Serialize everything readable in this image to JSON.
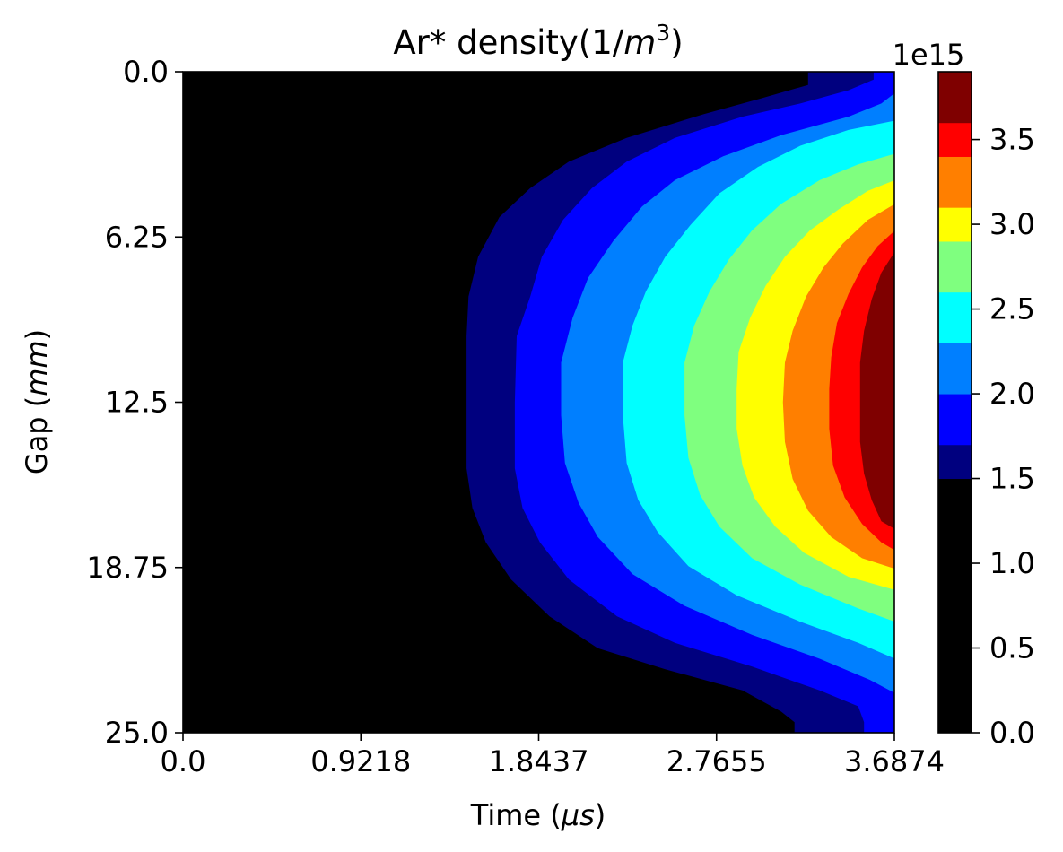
{
  "chart_data": {
    "type": "heatmap",
    "title": "Ar* density(1/m³)",
    "title_parts": {
      "main": "Ar* density(1/",
      "var": "m",
      "exp": "3",
      "close": ")"
    },
    "xlabel": "Time (μs)",
    "xlabel_parts": {
      "main": "Time (",
      "var": "μs",
      "close": ")"
    },
    "ylabel": "Gap (mm)",
    "ylabel_parts": {
      "main": "Gap (",
      "var": "mm",
      "close": ")"
    },
    "xlim": [
      0.0,
      3.6874
    ],
    "ylim": [
      25.0,
      0.0
    ],
    "x_ticks": [
      0.0,
      0.9218,
      1.8437,
      2.7655,
      3.6874
    ],
    "x_tick_labels": [
      "0.0",
      "0.9218",
      "1.8437",
      "2.7655",
      "3.6874"
    ],
    "y_ticks": [
      0.0,
      6.25,
      12.5,
      18.75,
      25.0
    ],
    "y_tick_labels": [
      "0.0",
      "6.25",
      "12.5",
      "18.75",
      "25.0"
    ],
    "colorbar": {
      "offset_label": "1e15",
      "ticks": [
        0.0,
        0.5,
        1.0,
        1.5,
        2.0,
        2.5,
        3.0,
        3.5
      ],
      "tick_labels": [
        "0.0",
        "0.5",
        "1.0",
        "1.5",
        "2.0",
        "2.5",
        "3.0",
        "3.5"
      ],
      "vmax": 3.9,
      "bands": [
        {
          "from": 0.0,
          "to": 1.5,
          "color": "#000000"
        },
        {
          "from": 1.5,
          "to": 1.7,
          "color": "#00007f"
        },
        {
          "from": 1.7,
          "to": 2.0,
          "color": "#0000ff"
        },
        {
          "from": 2.0,
          "to": 2.3,
          "color": "#007fff"
        },
        {
          "from": 2.3,
          "to": 2.6,
          "color": "#00ffff"
        },
        {
          "from": 2.6,
          "to": 2.9,
          "color": "#7fff7f"
        },
        {
          "from": 2.9,
          "to": 3.1,
          "color": "#ffff00"
        },
        {
          "from": 3.1,
          "to": 3.4,
          "color": "#ff7f00"
        },
        {
          "from": 3.4,
          "to": 3.6,
          "color": "#ff0000"
        },
        {
          "from": 3.6,
          "to": 3.9,
          "color": "#7f0000"
        }
      ]
    },
    "contours": [
      {
        "color": "#00007f",
        "boundary": [
          [
            3.24,
            0.0
          ],
          [
            3.24,
            0.5
          ],
          [
            3.0,
            1.0
          ],
          [
            2.7,
            1.6
          ],
          [
            2.3,
            2.5
          ],
          [
            2.0,
            3.4
          ],
          [
            1.8,
            4.4
          ],
          [
            1.64,
            5.5
          ],
          [
            1.53,
            7.0
          ],
          [
            1.48,
            8.5
          ],
          [
            1.47,
            10.0
          ],
          [
            1.47,
            12.5
          ],
          [
            1.47,
            15.0
          ],
          [
            1.5,
            16.5
          ],
          [
            1.57,
            17.8
          ],
          [
            1.7,
            19.2
          ],
          [
            1.9,
            20.6
          ],
          [
            2.15,
            21.8
          ],
          [
            2.5,
            22.6
          ],
          [
            2.9,
            23.4
          ],
          [
            3.1,
            24.2
          ],
          [
            3.17,
            24.6
          ],
          [
            3.17,
            25.0
          ]
        ]
      },
      {
        "color": "#0000ff",
        "boundary": [
          [
            3.58,
            0.0
          ],
          [
            3.58,
            0.3
          ],
          [
            3.45,
            0.7
          ],
          [
            3.2,
            1.2
          ],
          [
            2.9,
            1.7
          ],
          [
            2.55,
            2.5
          ],
          [
            2.3,
            3.4
          ],
          [
            2.12,
            4.4
          ],
          [
            1.97,
            5.6
          ],
          [
            1.86,
            7.0
          ],
          [
            1.8,
            8.5
          ],
          [
            1.73,
            10.0
          ],
          [
            1.72,
            12.5
          ],
          [
            1.72,
            15.0
          ],
          [
            1.76,
            16.5
          ],
          [
            1.85,
            17.8
          ],
          [
            2.0,
            19.2
          ],
          [
            2.25,
            20.6
          ],
          [
            2.55,
            21.6
          ],
          [
            2.95,
            22.5
          ],
          [
            3.3,
            23.4
          ],
          [
            3.5,
            24.0
          ],
          [
            3.53,
            24.6
          ],
          [
            3.53,
            25.0
          ]
        ]
      },
      {
        "color": "#007fff",
        "boundary": [
          [
            3.69,
            0.8
          ],
          [
            3.62,
            1.2
          ],
          [
            3.45,
            1.7
          ],
          [
            3.1,
            2.4
          ],
          [
            2.8,
            3.2
          ],
          [
            2.55,
            4.1
          ],
          [
            2.38,
            5.1
          ],
          [
            2.23,
            6.4
          ],
          [
            2.1,
            7.8
          ],
          [
            2.02,
            9.3
          ],
          [
            1.96,
            11.0
          ],
          [
            1.96,
            13.0
          ],
          [
            1.98,
            14.8
          ],
          [
            2.05,
            16.3
          ],
          [
            2.15,
            17.6
          ],
          [
            2.33,
            19.0
          ],
          [
            2.6,
            20.2
          ],
          [
            2.95,
            21.3
          ],
          [
            3.3,
            22.2
          ],
          [
            3.56,
            23.0
          ],
          [
            3.69,
            23.5
          ]
        ]
      },
      {
        "color": "#00ffff",
        "boundary": [
          [
            3.69,
            1.85
          ],
          [
            3.45,
            2.2
          ],
          [
            3.2,
            2.8
          ],
          [
            2.98,
            3.6
          ],
          [
            2.78,
            4.6
          ],
          [
            2.63,
            5.8
          ],
          [
            2.5,
            7.0
          ],
          [
            2.4,
            8.3
          ],
          [
            2.33,
            9.6
          ],
          [
            2.28,
            11.0
          ],
          [
            2.28,
            13.0
          ],
          [
            2.3,
            14.8
          ],
          [
            2.36,
            16.2
          ],
          [
            2.46,
            17.4
          ],
          [
            2.62,
            18.7
          ],
          [
            2.87,
            19.8
          ],
          [
            3.2,
            20.8
          ],
          [
            3.5,
            21.6
          ],
          [
            3.69,
            22.2
          ]
        ]
      },
      {
        "color": "#7fff7f",
        "boundary": [
          [
            3.69,
            3.1
          ],
          [
            3.5,
            3.5
          ],
          [
            3.3,
            4.1
          ],
          [
            3.1,
            5.0
          ],
          [
            2.95,
            6.0
          ],
          [
            2.83,
            7.1
          ],
          [
            2.73,
            8.3
          ],
          [
            2.65,
            9.6
          ],
          [
            2.6,
            11.0
          ],
          [
            2.6,
            13.0
          ],
          [
            2.62,
            14.6
          ],
          [
            2.68,
            16.0
          ],
          [
            2.78,
            17.2
          ],
          [
            2.95,
            18.4
          ],
          [
            3.2,
            19.4
          ],
          [
            3.5,
            20.3
          ],
          [
            3.69,
            20.8
          ]
        ]
      },
      {
        "color": "#ffff00",
        "boundary": [
          [
            3.69,
            4.1
          ],
          [
            3.55,
            4.5
          ],
          [
            3.4,
            5.2
          ],
          [
            3.25,
            6.0
          ],
          [
            3.12,
            7.0
          ],
          [
            3.02,
            8.1
          ],
          [
            2.94,
            9.3
          ],
          [
            2.88,
            10.6
          ],
          [
            2.87,
            12.0
          ],
          [
            2.87,
            13.5
          ],
          [
            2.9,
            14.9
          ],
          [
            2.96,
            16.1
          ],
          [
            3.07,
            17.2
          ],
          [
            3.22,
            18.2
          ],
          [
            3.45,
            19.1
          ],
          [
            3.69,
            19.6
          ]
        ]
      },
      {
        "color": "#ff7f00",
        "boundary": [
          [
            3.69,
            5.0
          ],
          [
            3.55,
            5.6
          ],
          [
            3.42,
            6.5
          ],
          [
            3.32,
            7.4
          ],
          [
            3.23,
            8.5
          ],
          [
            3.16,
            9.8
          ],
          [
            3.12,
            11.0
          ],
          [
            3.11,
            12.5
          ],
          [
            3.12,
            14.0
          ],
          [
            3.16,
            15.4
          ],
          [
            3.24,
            16.6
          ],
          [
            3.36,
            17.6
          ],
          [
            3.52,
            18.4
          ],
          [
            3.69,
            18.8
          ]
        ]
      },
      {
        "color": "#ff0000",
        "boundary": [
          [
            3.69,
            6.0
          ],
          [
            3.6,
            6.6
          ],
          [
            3.52,
            7.4
          ],
          [
            3.45,
            8.4
          ],
          [
            3.39,
            9.5
          ],
          [
            3.36,
            10.8
          ],
          [
            3.35,
            12.0
          ],
          [
            3.35,
            13.5
          ],
          [
            3.37,
            14.9
          ],
          [
            3.43,
            16.1
          ],
          [
            3.52,
            17.1
          ],
          [
            3.62,
            17.8
          ],
          [
            3.69,
            18.1
          ]
        ]
      },
      {
        "color": "#7f0000",
        "boundary": [
          [
            3.69,
            6.8
          ],
          [
            3.62,
            7.6
          ],
          [
            3.57,
            8.6
          ],
          [
            3.53,
            9.8
          ],
          [
            3.51,
            11.0
          ],
          [
            3.51,
            12.5
          ],
          [
            3.51,
            14.0
          ],
          [
            3.53,
            15.2
          ],
          [
            3.57,
            16.2
          ],
          [
            3.62,
            17.0
          ],
          [
            3.69,
            17.3
          ]
        ]
      }
    ]
  }
}
